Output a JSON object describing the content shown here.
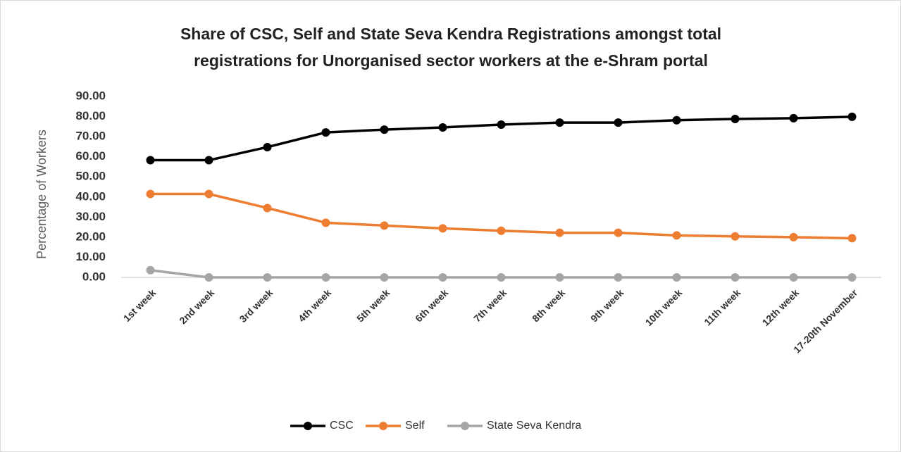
{
  "chart_data": {
    "type": "line",
    "title": [
      "Share of CSC, Self and State Seva Kendra Registrations amongst total",
      "registrations for Unorganised sector workers at the e-Shram portal"
    ],
    "y_label": "Percentage of Workers",
    "categories": [
      "1st week",
      "2nd week",
      "3rd week",
      "4th week",
      "5th week",
      "6th week",
      "7th week",
      "8th week",
      "9th week",
      "10th week",
      "11th week",
      "12th week",
      "17-20th November"
    ],
    "series": [
      {
        "name": "CSC",
        "color": "#000000",
        "values": [
          58.3,
          58.3,
          64.8,
          72.1,
          73.5,
          74.6,
          76.0,
          77.0,
          77.0,
          78.2,
          78.8,
          79.2,
          79.9
        ]
      },
      {
        "name": "Self",
        "color": "#ed7d31",
        "values": [
          41.5,
          41.5,
          34.5,
          27.2,
          25.8,
          24.4,
          23.2,
          22.2,
          22.2,
          20.9,
          20.4,
          20.0,
          19.5
        ]
      },
      {
        "name": "State Seva Kendra",
        "color": "#a5a5a5",
        "values": [
          3.6,
          0,
          0,
          0,
          0,
          0,
          0,
          0,
          0,
          0,
          0,
          0,
          0
        ]
      }
    ],
    "ylim": [
      0,
      90
    ],
    "yticks": [
      {
        "value": 0,
        "label": "0.00"
      },
      {
        "value": 10,
        "label": "10.00"
      },
      {
        "value": 20,
        "label": "20.00"
      },
      {
        "value": 30,
        "label": "30.00"
      },
      {
        "value": 40,
        "label": "40.00"
      },
      {
        "value": 50,
        "label": "50.00"
      },
      {
        "value": 60,
        "label": "60.00"
      },
      {
        "value": 70,
        "label": "70.00"
      },
      {
        "value": 80,
        "label": "80.00"
      },
      {
        "value": 90,
        "label": "90.00"
      }
    ],
    "grid": false,
    "legend": "bottom"
  }
}
